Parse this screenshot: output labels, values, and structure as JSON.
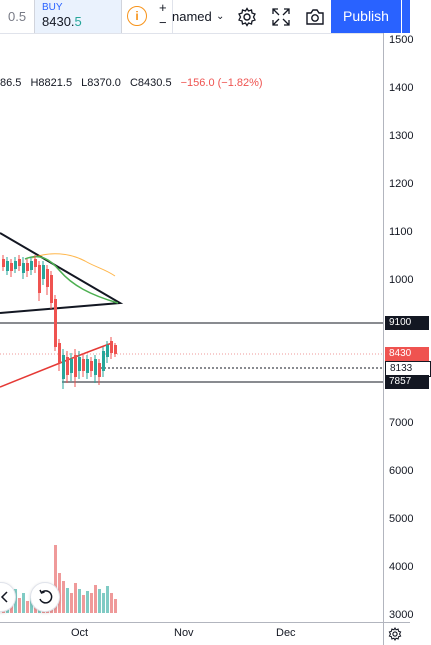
{
  "toolbar": {
    "sell_price": "0.5",
    "buy_label": "BUY",
    "buy_price_main": "8430.",
    "buy_price_dec": "5",
    "qty_plus": "+",
    "qty_minus": "−",
    "layout_name": "named",
    "publish_label": "Publish"
  },
  "legend": {
    "open": "86.5",
    "high": "H8821.5",
    "low": "L8370.0",
    "close": "C8430.5",
    "change": "−156.0 (−1.82%)"
  },
  "price_axis": {
    "labels": [
      "1500",
      "1400",
      "1300",
      "1200",
      "1100",
      "1000",
      "7000",
      "6000",
      "5000",
      "4000",
      "3000"
    ],
    "tags": [
      {
        "text": "9100",
        "color": "#131722",
        "text_color": "#ffffff"
      },
      {
        "text": "8430",
        "color": "#ef5350",
        "text_color": "#ffffff"
      },
      {
        "text": "8133",
        "color": "#ffffff",
        "text_color": "#131722"
      },
      {
        "text": "7857",
        "color": "#131722",
        "text_color": "#ffffff"
      }
    ]
  },
  "time_axis": {
    "labels": [
      "Oct",
      "Nov",
      "Dec"
    ]
  },
  "colors": {
    "up": "#26a69a",
    "down": "#ef5350",
    "accent": "#2962ff",
    "ma_fast": "#e53935",
    "ma_green": "#4caf50",
    "ma_orange": "#ff9800"
  }
}
